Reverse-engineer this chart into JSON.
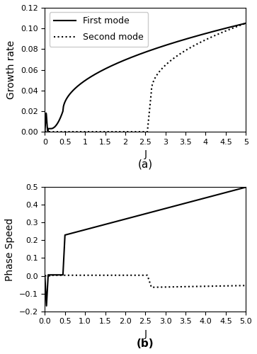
{
  "title_a": "(a)",
  "title_b": "(b)",
  "xlabel": "J",
  "ylabel_a": "Growth rate",
  "ylabel_b": "Phase Speed",
  "xlim": [
    0,
    5
  ],
  "ylim_a": [
    0,
    0.12
  ],
  "ylim_b": [
    -0.2,
    0.5
  ],
  "xticks": [
    0,
    0.5,
    1,
    1.5,
    2,
    2.5,
    3,
    3.5,
    4,
    4.5,
    5
  ],
  "yticks_a": [
    0,
    0.02,
    0.04,
    0.06,
    0.08,
    0.1,
    0.12
  ],
  "yticks_b": [
    -0.2,
    -0.1,
    0,
    0.1,
    0.2,
    0.3,
    0.4,
    0.5
  ],
  "legend_labels": [
    "First mode",
    "Second mode"
  ],
  "line_color": "#000000",
  "bg_color": "#ffffff"
}
